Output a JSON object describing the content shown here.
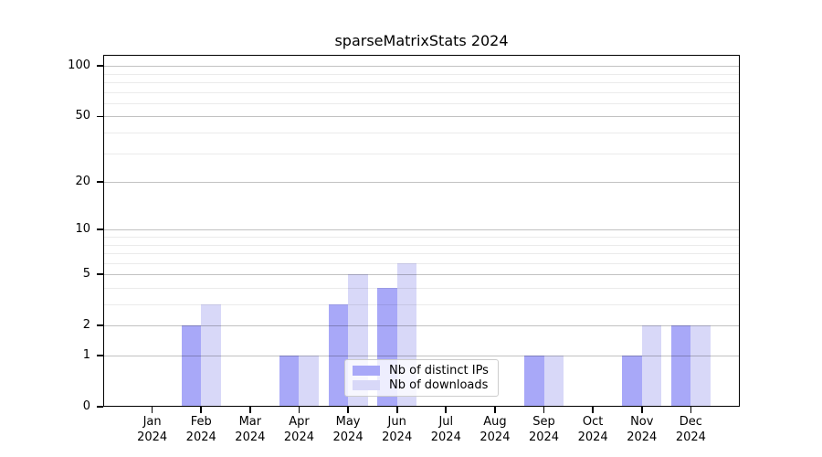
{
  "title": "sparseMatrixStats 2024",
  "chart_data": {
    "type": "bar",
    "title": "sparseMatrixStats 2024",
    "categories": [
      "Jan",
      "Feb",
      "Mar",
      "Apr",
      "May",
      "Jun",
      "Jul",
      "Aug",
      "Sep",
      "Oct",
      "Nov",
      "Dec"
    ],
    "x_year_label": "2024",
    "series": [
      {
        "name": "Nb of distinct IPs",
        "color": "#a8a8f8",
        "values": [
          0,
          2,
          0,
          1,
          3,
          4,
          0,
          0,
          1,
          0,
          1,
          2
        ]
      },
      {
        "name": "Nb of downloads",
        "color": "#d8d8f8",
        "values": [
          0,
          3,
          0,
          1,
          5,
          6,
          0,
          0,
          1,
          0,
          2,
          2
        ]
      }
    ],
    "xlabel": "",
    "ylabel": "",
    "yscale": "log1p",
    "yticks": [
      0,
      1,
      2,
      5,
      10,
      20,
      50,
      100
    ],
    "yticks_minor": [
      3,
      4,
      6,
      7,
      8,
      9,
      30,
      40,
      60,
      70,
      80,
      90
    ],
    "ylim": [
      0,
      116.5
    ],
    "grid": "on",
    "legend_position": "lower center"
  },
  "colors": {
    "background": "#ffffff",
    "spine": "#000000",
    "grid_major": "rgba(0,0,0,0.24)",
    "grid_minor": "rgba(0,0,0,0.08)",
    "legend_border": "#cccccc",
    "text": "#000000"
  }
}
